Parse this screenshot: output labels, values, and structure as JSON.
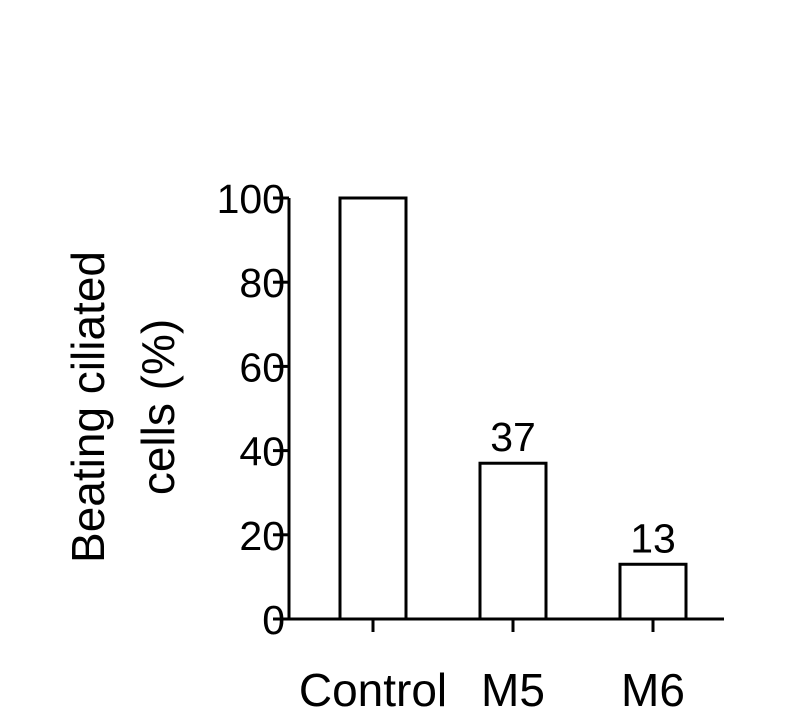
{
  "chart_data": {
    "type": "bar",
    "title": "",
    "xlabel": "",
    "ylabel": [
      "Beating ciliated",
      "cells (%)"
    ],
    "categories": [
      "Control",
      "M5",
      "M6"
    ],
    "values": [
      100,
      37,
      13
    ],
    "data_labels": [
      "",
      "37",
      "13"
    ],
    "ylim": [
      0,
      100
    ],
    "yticks": [
      0,
      20,
      40,
      60,
      80,
      100
    ],
    "grid": false,
    "legend": "none",
    "bar_fill": "#ffffff",
    "bar_stroke": "#000000"
  }
}
